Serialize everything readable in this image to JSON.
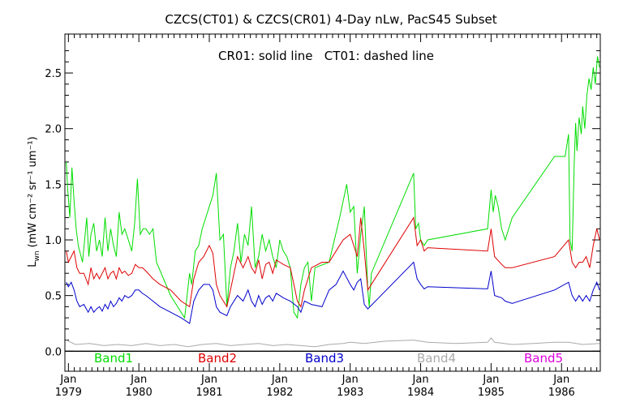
{
  "chart_data": {
    "type": "line",
    "title": "CZCS(CT01) & CZCS(CR01) 4-Day nLw, PacS45 Subset",
    "annotation": "CR01: solid line   CT01: dashed line",
    "ylabel": "L",
    "ylabel_sub": "wn",
    "ylabel_units": "(mW cm⁻² sr⁻¹ um⁻¹)",
    "xlim": [
      1978.95,
      1986.55
    ],
    "ylim": [
      -0.18,
      2.85
    ],
    "y_ticks": [
      "0.0",
      "0.5",
      "1.0",
      "1.5",
      "2.0",
      "2.5"
    ],
    "y_tick_values": [
      0.0,
      0.5,
      1.0,
      1.5,
      2.0,
      2.5
    ],
    "x_ticks": [
      {
        "month": "Jan",
        "year": "1979",
        "value": 1979.0
      },
      {
        "month": "Jan",
        "year": "1980",
        "value": 1980.0
      },
      {
        "month": "Jan",
        "year": "1981",
        "value": 1981.0
      },
      {
        "month": "Jan",
        "year": "1982",
        "value": 1982.0
      },
      {
        "month": "Jan",
        "year": "1983",
        "value": 1983.0
      },
      {
        "month": "Jan",
        "year": "1984",
        "value": 1984.0
      },
      {
        "month": "Jan",
        "year": "1985",
        "value": 1985.0
      },
      {
        "month": "Jan",
        "year": "1986",
        "value": 1986.0
      }
    ],
    "reference_line": 0.0,
    "legend_placement": "bottom inside plot",
    "series": [
      {
        "name": "Band1",
        "color": "#00dd00",
        "x": [
          1978.97,
          1978.99,
          1979.02,
          1979.05,
          1979.08,
          1979.11,
          1979.14,
          1979.2,
          1979.26,
          1979.29,
          1979.32,
          1979.36,
          1979.4,
          1979.44,
          1979.48,
          1979.52,
          1979.56,
          1979.6,
          1979.64,
          1979.68,
          1979.72,
          1979.76,
          1979.8,
          1979.85,
          1979.9,
          1979.94,
          1979.98,
          1980.02,
          1980.06,
          1980.1,
          1980.15,
          1980.2,
          1980.25,
          1980.35,
          1980.45,
          1980.55,
          1980.65,
          1980.72,
          1980.75,
          1980.8,
          1980.85,
          1980.9,
          1980.95,
          1981.0,
          1981.05,
          1981.1,
          1981.15,
          1981.2,
          1981.25,
          1981.3,
          1981.35,
          1981.4,
          1981.45,
          1981.5,
          1981.55,
          1981.6,
          1981.65,
          1981.7,
          1981.75,
          1981.8,
          1981.85,
          1981.9,
          1981.95,
          1982.0,
          1982.05,
          1982.1,
          1982.15,
          1982.2,
          1982.25,
          1982.3,
          1982.35,
          1982.4,
          1982.45,
          1982.5,
          1982.7,
          1982.85,
          1982.95,
          1983.0,
          1983.05,
          1983.1,
          1983.15,
          1983.2,
          1983.25,
          1983.27,
          1983.3,
          1983.9,
          1983.93,
          1983.97,
          1984.0,
          1984.05,
          1984.1,
          1984.95,
          1985.0,
          1985.03,
          1985.06,
          1985.1,
          1985.15,
          1985.2,
          1985.3,
          1985.9,
          1986.05,
          1986.1,
          1986.12,
          1986.15,
          1986.18,
          1986.2,
          1986.22,
          1986.25,
          1986.28,
          1986.3,
          1986.33,
          1986.36,
          1986.39,
          1986.42,
          1986.45,
          1986.48,
          1986.51,
          1986.54
        ],
        "y": [
          1.7,
          1.45,
          1.2,
          1.65,
          1.35,
          1.1,
          0.95,
          0.8,
          1.2,
          0.85,
          1.05,
          1.15,
          0.9,
          1.0,
          0.85,
          1.2,
          0.9,
          1.1,
          0.95,
          0.85,
          1.25,
          1.05,
          1.1,
          1.0,
          0.9,
          1.15,
          1.55,
          1.05,
          1.1,
          1.1,
          1.05,
          1.1,
          0.8,
          0.65,
          0.5,
          0.4,
          0.3,
          0.7,
          0.6,
          0.9,
          0.95,
          1.1,
          1.2,
          1.3,
          1.4,
          1.6,
          1.0,
          1.05,
          0.4,
          0.75,
          0.9,
          1.15,
          0.8,
          1.05,
          0.95,
          1.3,
          0.75,
          0.85,
          1.05,
          0.9,
          1.0,
          0.85,
          0.75,
          1.0,
          0.9,
          0.85,
          0.75,
          0.35,
          0.3,
          0.6,
          0.75,
          0.8,
          0.45,
          0.75,
          0.8,
          1.2,
          1.5,
          1.25,
          1.3,
          0.7,
          1.05,
          1.3,
          0.55,
          0.4,
          0.7,
          1.6,
          1.1,
          1.15,
          1.0,
          0.95,
          1.0,
          1.1,
          1.45,
          1.25,
          1.4,
          1.3,
          1.1,
          1.0,
          1.2,
          1.75,
          1.75,
          1.95,
          1.0,
          0.9,
          1.7,
          2.05,
          1.8,
          2.1,
          1.95,
          2.2,
          2.0,
          2.3,
          2.45,
          2.35,
          2.55,
          2.4,
          2.65,
          2.55
        ]
      },
      {
        "name": "Band2",
        "color": "#dd0000",
        "x": [
          1978.97,
          1979.0,
          1979.04,
          1979.08,
          1979.12,
          1979.16,
          1979.22,
          1979.28,
          1979.32,
          1979.36,
          1979.4,
          1979.44,
          1979.48,
          1979.52,
          1979.56,
          1979.6,
          1979.64,
          1979.68,
          1979.72,
          1979.76,
          1979.8,
          1979.85,
          1979.9,
          1979.95,
          1980.0,
          1980.05,
          1980.1,
          1980.2,
          1980.3,
          1980.45,
          1980.6,
          1980.72,
          1980.78,
          1980.85,
          1980.92,
          1981.0,
          1981.05,
          1981.1,
          1981.15,
          1981.25,
          1981.3,
          1981.4,
          1981.48,
          1981.55,
          1981.6,
          1981.65,
          1981.7,
          1981.75,
          1981.8,
          1981.85,
          1981.9,
          1981.95,
          1982.0,
          1982.05,
          1982.15,
          1982.25,
          1982.3,
          1982.35,
          1982.45,
          1982.6,
          1982.7,
          1982.8,
          1982.9,
          1983.0,
          1983.05,
          1983.1,
          1983.15,
          1983.2,
          1983.25,
          1983.9,
          1983.95,
          1984.0,
          1984.05,
          1984.1,
          1984.95,
          1985.0,
          1985.05,
          1985.15,
          1985.2,
          1985.3,
          1985.9,
          1986.1,
          1986.15,
          1986.2,
          1986.25,
          1986.3,
          1986.35,
          1986.4,
          1986.45,
          1986.5,
          1986.54
        ],
        "y": [
          0.9,
          0.8,
          0.85,
          0.9,
          0.75,
          0.7,
          0.7,
          0.6,
          0.75,
          0.65,
          0.7,
          0.65,
          0.7,
          0.75,
          0.65,
          0.7,
          0.72,
          0.65,
          0.75,
          0.7,
          0.72,
          0.68,
          0.7,
          0.78,
          0.75,
          0.75,
          0.72,
          0.65,
          0.6,
          0.55,
          0.45,
          0.4,
          0.65,
          0.8,
          0.85,
          0.95,
          0.88,
          0.6,
          0.5,
          0.4,
          0.55,
          0.85,
          0.75,
          0.85,
          0.75,
          0.7,
          0.82,
          0.65,
          0.78,
          0.8,
          0.7,
          0.82,
          0.8,
          0.78,
          0.75,
          0.45,
          0.4,
          0.55,
          0.75,
          0.8,
          0.8,
          0.9,
          1.0,
          1.05,
          0.95,
          0.85,
          1.2,
          0.9,
          0.55,
          1.2,
          0.95,
          1.0,
          0.9,
          0.93,
          0.9,
          1.1,
          0.85,
          0.78,
          0.75,
          0.75,
          0.85,
          1.0,
          0.8,
          0.75,
          0.8,
          0.8,
          0.85,
          0.75,
          0.95,
          1.1,
          1.0
        ]
      },
      {
        "name": "Band3",
        "color": "#0000cc",
        "x": [
          1978.97,
          1979.0,
          1979.04,
          1979.08,
          1979.12,
          1979.16,
          1979.22,
          1979.28,
          1979.32,
          1979.36,
          1979.4,
          1979.44,
          1979.48,
          1979.52,
          1979.56,
          1979.6,
          1979.64,
          1979.68,
          1979.72,
          1979.76,
          1979.8,
          1979.85,
          1979.9,
          1979.95,
          1980.0,
          1980.05,
          1980.1,
          1980.2,
          1980.3,
          1980.45,
          1980.6,
          1980.72,
          1980.78,
          1980.85,
          1980.92,
          1981.0,
          1981.05,
          1981.1,
          1981.15,
          1981.25,
          1981.3,
          1981.4,
          1981.48,
          1981.55,
          1981.6,
          1981.65,
          1981.7,
          1981.75,
          1981.8,
          1981.85,
          1981.9,
          1981.95,
          1982.0,
          1982.05,
          1982.15,
          1982.25,
          1982.3,
          1982.35,
          1982.45,
          1982.6,
          1982.7,
          1982.8,
          1982.9,
          1983.0,
          1983.05,
          1983.1,
          1983.15,
          1983.2,
          1983.25,
          1983.9,
          1983.95,
          1984.0,
          1984.05,
          1984.1,
          1984.95,
          1985.0,
          1985.05,
          1985.15,
          1985.2,
          1985.3,
          1985.9,
          1986.1,
          1986.15,
          1986.2,
          1986.25,
          1986.3,
          1986.35,
          1986.4,
          1986.45,
          1986.5,
          1986.54
        ],
        "y": [
          0.62,
          0.58,
          0.62,
          0.55,
          0.45,
          0.4,
          0.42,
          0.35,
          0.4,
          0.35,
          0.38,
          0.4,
          0.36,
          0.42,
          0.38,
          0.45,
          0.4,
          0.43,
          0.48,
          0.45,
          0.5,
          0.48,
          0.5,
          0.55,
          0.55,
          0.52,
          0.5,
          0.45,
          0.4,
          0.35,
          0.3,
          0.25,
          0.45,
          0.55,
          0.6,
          0.6,
          0.55,
          0.4,
          0.35,
          0.32,
          0.4,
          0.5,
          0.45,
          0.55,
          0.45,
          0.4,
          0.5,
          0.42,
          0.48,
          0.5,
          0.45,
          0.52,
          0.5,
          0.48,
          0.45,
          0.4,
          0.35,
          0.45,
          0.42,
          0.4,
          0.55,
          0.6,
          0.72,
          0.6,
          0.55,
          0.62,
          0.65,
          0.42,
          0.38,
          0.8,
          0.65,
          0.6,
          0.56,
          0.58,
          0.56,
          0.72,
          0.5,
          0.48,
          0.45,
          0.43,
          0.55,
          0.62,
          0.5,
          0.45,
          0.5,
          0.45,
          0.5,
          0.45,
          0.55,
          0.62,
          0.55
        ]
      },
      {
        "name": "Band4",
        "color": "#aaaaaa",
        "x": [
          1978.97,
          1979.1,
          1979.3,
          1979.5,
          1979.7,
          1979.9,
          1980.1,
          1980.3,
          1980.5,
          1980.7,
          1980.9,
          1981.1,
          1981.3,
          1981.5,
          1981.7,
          1981.9,
          1982.1,
          1982.3,
          1982.5,
          1982.7,
          1982.9,
          1983.0,
          1983.2,
          1983.5,
          1983.9,
          1984.1,
          1984.5,
          1984.95,
          1985.0,
          1985.05,
          1985.3,
          1985.6,
          1985.9,
          1986.1,
          1986.3,
          1986.54
        ],
        "y": [
          0.1,
          0.06,
          0.07,
          0.05,
          0.06,
          0.05,
          0.07,
          0.05,
          0.06,
          0.04,
          0.06,
          0.07,
          0.05,
          0.06,
          0.07,
          0.05,
          0.06,
          0.05,
          0.04,
          0.06,
          0.07,
          0.08,
          0.07,
          0.09,
          0.1,
          0.08,
          0.07,
          0.08,
          0.12,
          0.08,
          0.06,
          0.07,
          0.08,
          0.08,
          0.06,
          0.07
        ]
      },
      {
        "name": "Band5",
        "color": "#dd00dd",
        "x": [],
        "y": []
      }
    ]
  }
}
